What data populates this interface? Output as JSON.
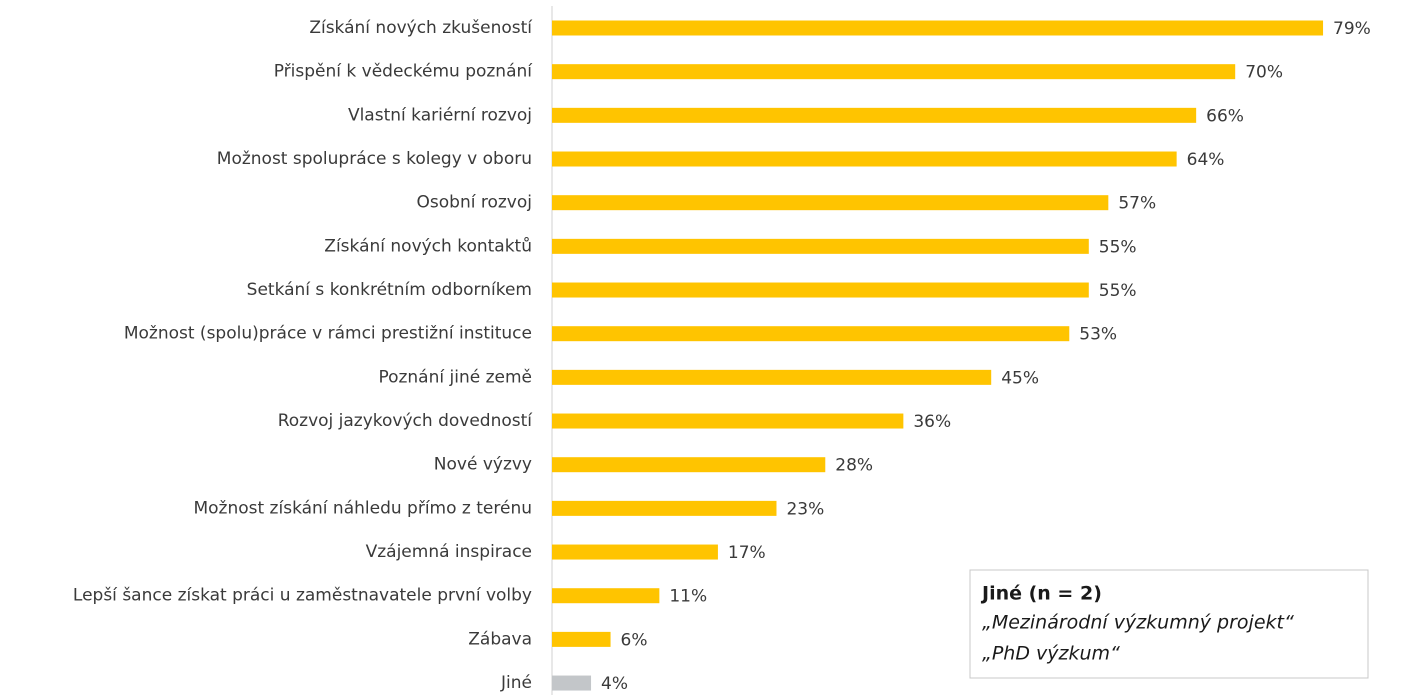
{
  "chart_data": {
    "type": "hbar",
    "categories": [
      "Získání nových zkušeností",
      "Přispění k vědeckému poznání",
      "Vlastní kariérní rozvoj",
      "Možnost spolupráce s kolegy v oboru",
      "Osobní rozvoj",
      "Získání nových kontaktů",
      "Setkání s konkrétním odborníkem",
      "Možnost (spolu)práce v rámci prestižní instituce",
      "Poznání jiné země",
      "Rozvoj jazykových dovedností",
      "Nové výzvy",
      "Možnost získání náhledu přímo z terénu",
      "Vzájemná inspirace",
      "Lepší šance získat práci u zaměstnavatele první volby",
      "Zábava",
      "Jiné"
    ],
    "values": [
      79,
      70,
      66,
      64,
      57,
      55,
      55,
      53,
      45,
      36,
      28,
      23,
      17,
      11,
      6,
      4
    ],
    "value_labels": [
      "79%",
      "70%",
      "66%",
      "64%",
      "57%",
      "55%",
      "55%",
      "53%",
      "45%",
      "36%",
      "28%",
      "23%",
      "17%",
      "11%",
      "6%",
      "4%"
    ],
    "colors": [
      "#ffc400",
      "#ffc400",
      "#ffc400",
      "#ffc400",
      "#ffc400",
      "#ffc400",
      "#ffc400",
      "#ffc400",
      "#ffc400",
      "#ffc400",
      "#ffc400",
      "#ffc400",
      "#ffc400",
      "#ffc400",
      "#ffc400",
      "#c3c6c9"
    ],
    "annotation": {
      "title": "Jiné (n = 2)",
      "lines": [
        "„Mezinárodní výzkumný projekt“",
        "„PhD výzkum“"
      ]
    }
  }
}
